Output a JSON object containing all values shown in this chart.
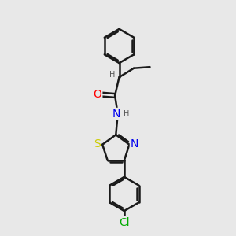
{
  "bg_color": "#e8e8e8",
  "bond_color": "#1a1a1a",
  "bond_width": 1.8,
  "atom_colors": {
    "O": "#ff0000",
    "N": "#0000ee",
    "S": "#cccc00",
    "Cl": "#00aa00",
    "H": "#555555",
    "C": "#1a1a1a"
  },
  "font_size": 8,
  "figsize": [
    3.0,
    3.0
  ],
  "dpi": 100
}
